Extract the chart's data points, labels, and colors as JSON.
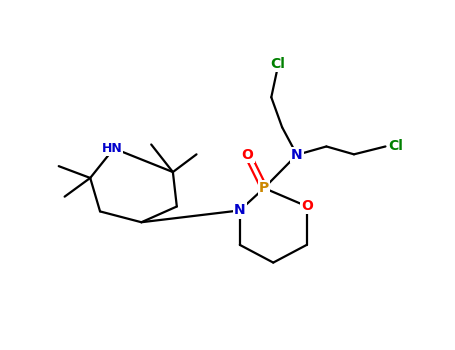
{
  "bg_color": "#ffffff",
  "bond_color": "#000000",
  "colors": {
    "N": "#0000CC",
    "O": "#FF0000",
    "P": "#CC8800",
    "Cl": "#008000",
    "C": "#000000"
  },
  "figsize": [
    4.55,
    3.5
  ],
  "dpi": 100,
  "lw": 1.6,
  "fs": 9
}
